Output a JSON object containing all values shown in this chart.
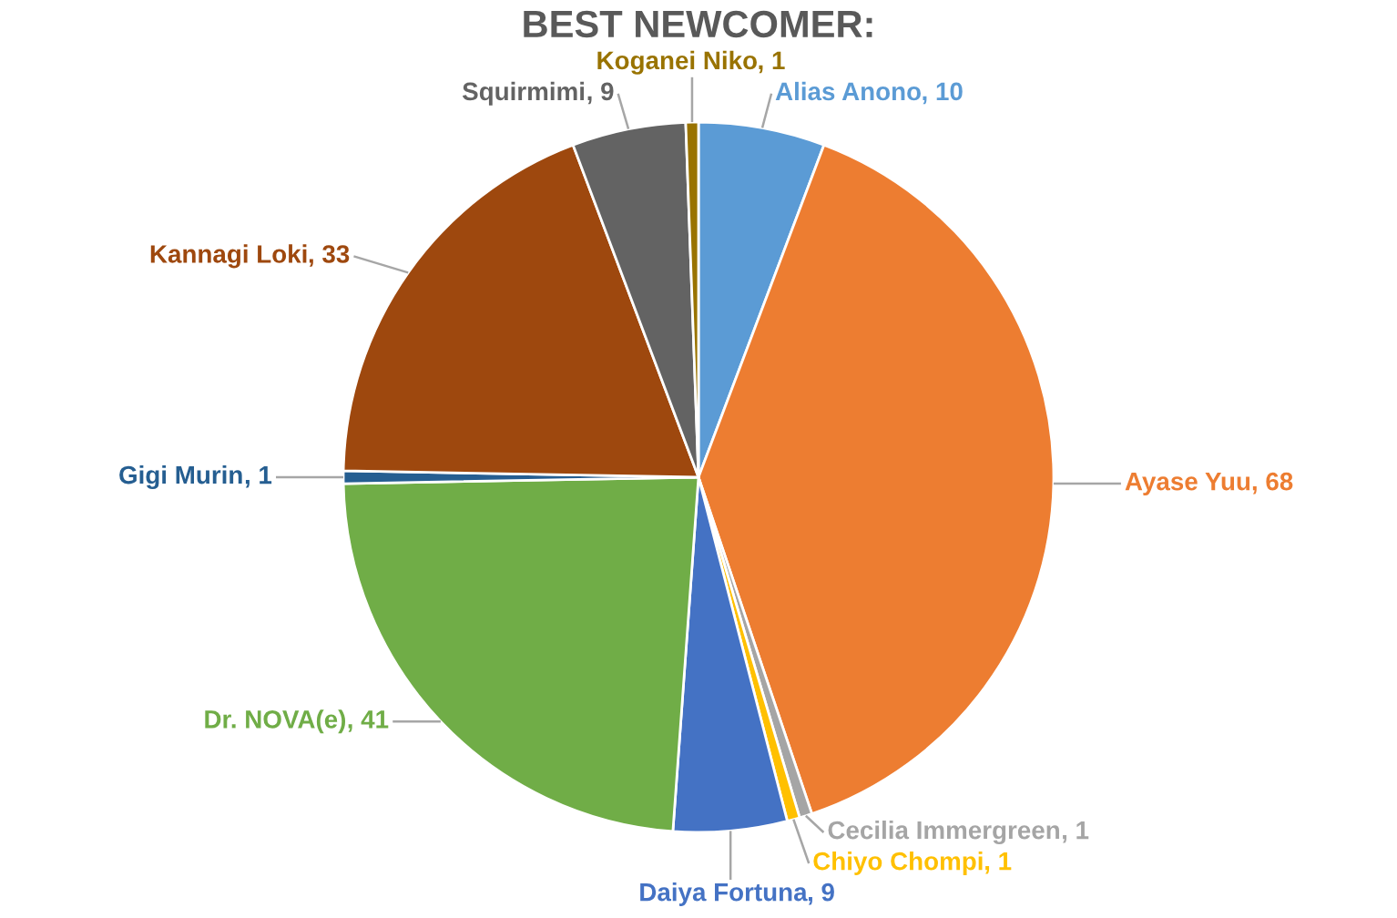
{
  "chart_data": {
    "type": "pie",
    "title": "BEST NEWCOMER:",
    "categories": [
      "Alias Anono",
      "Ayase Yuu",
      "Cecilia Immergreen",
      "Chiyo Chompi",
      "Daiya Fortuna",
      "Dr. NOVA(e)",
      "Gigi Murin",
      "Kannagi Loki",
      "Squirmimi",
      "Koganei Niko"
    ],
    "values": [
      10,
      68,
      1,
      1,
      9,
      41,
      1,
      33,
      9,
      1
    ],
    "value_labels": [
      ", 10",
      ", 68",
      ", 1",
      ", 1",
      ", 9",
      ", 41",
      ", 1",
      ", 33",
      ", 9",
      ", 1"
    ],
    "colors": [
      "#5b9bd5",
      "#ed7d31",
      "#a5a5a5",
      "#ffc000",
      "#4472c4",
      "#70ad47",
      "#255e91",
      "#9e480e",
      "#636363",
      "#997300"
    ]
  }
}
